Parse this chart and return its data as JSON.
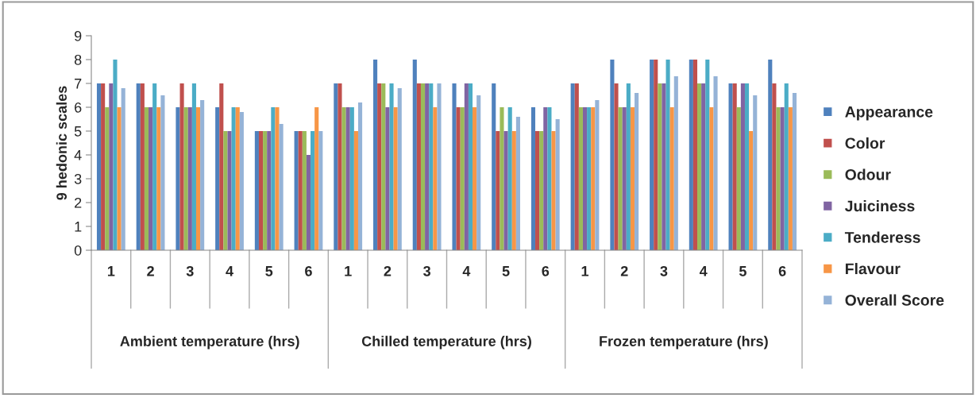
{
  "chart_data": {
    "type": "bar",
    "ylabel": "9 hedonic scales",
    "categories": [
      "1",
      "2",
      "3",
      "4",
      "5",
      "6",
      "1",
      "2",
      "3",
      "4",
      "5",
      "6",
      "1",
      "2",
      "3",
      "4",
      "5",
      "6"
    ],
    "annotations": [
      "Ambient temperature (hrs)",
      "Chilled temperature (hrs)",
      "Frozen temperature (hrs)"
    ],
    "series": [
      {
        "name": "Appearance",
        "color": "#4f81bd",
        "values": [
          7,
          7,
          6,
          6,
          5,
          5,
          7,
          8,
          8,
          7,
          7,
          6,
          7,
          8,
          8,
          8,
          7,
          8
        ]
      },
      {
        "name": "Color",
        "color": "#c0504d",
        "values": [
          7,
          7,
          7,
          7,
          5,
          5,
          7,
          7,
          7,
          6,
          5,
          5,
          7,
          7,
          8,
          8,
          7,
          7
        ]
      },
      {
        "name": "Odour",
        "color": "#9bbb59",
        "values": [
          6,
          6,
          6,
          5,
          5,
          5,
          6,
          7,
          7,
          6,
          6,
          5,
          6,
          6,
          7,
          7,
          6,
          6
        ]
      },
      {
        "name": "Juiciness",
        "color": "#8064a2",
        "values": [
          7,
          6,
          6,
          5,
          5,
          4,
          6,
          6,
          7,
          7,
          5,
          6,
          6,
          6,
          7,
          7,
          7,
          6
        ]
      },
      {
        "name": "Tenderess",
        "color": "#4bacc6",
        "values": [
          8,
          7,
          7,
          6,
          6,
          5,
          6,
          7,
          7,
          7,
          6,
          6,
          6,
          7,
          8,
          8,
          7,
          7
        ]
      },
      {
        "name": "Flavour",
        "color": "#f79646",
        "values": [
          6,
          6,
          6,
          6,
          6,
          6,
          5,
          6,
          6,
          6,
          5,
          5,
          6,
          6,
          6,
          6,
          5,
          6
        ]
      },
      {
        "name": "Overall Score",
        "color": "#95b3d7",
        "values": [
          6.8,
          6.5,
          6.3,
          5.8,
          5.3,
          5,
          6.2,
          6.8,
          7,
          6.5,
          5.6,
          5.5,
          6.3,
          6.6,
          7.3,
          7.3,
          6.5,
          6.6
        ]
      }
    ],
    "ylim": [
      0,
      9
    ],
    "yticks": [
      0,
      1,
      2,
      3,
      4,
      5,
      6,
      7,
      8,
      9
    ],
    "grid": false,
    "legend": "right"
  }
}
